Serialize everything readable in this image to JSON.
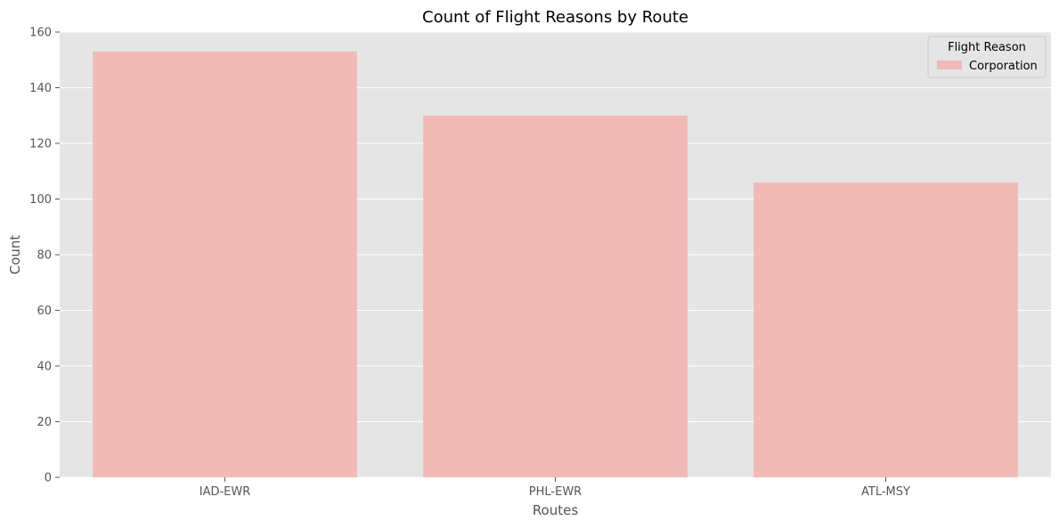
{
  "chart_data": {
    "type": "bar",
    "title": "Count of Flight Reasons by Route",
    "xlabel": "Routes",
    "ylabel": "Count",
    "categories": [
      "IAD-EWR",
      "PHL-EWR",
      "ATL-MSY"
    ],
    "series": [
      {
        "name": "Corporation",
        "values": [
          153,
          130,
          106
        ],
        "color": "#f0bab7"
      }
    ],
    "ylim": [
      0,
      160
    ],
    "yticks": [
      0,
      20,
      40,
      60,
      80,
      100,
      120,
      140,
      160
    ],
    "grid": true,
    "legend": {
      "title": "Flight Reason",
      "placement": "top-right"
    },
    "colors": {
      "plot_background": "#e5e5e5",
      "grid": "#ffffff",
      "text": "#000000",
      "tick_text": "#555555"
    }
  }
}
